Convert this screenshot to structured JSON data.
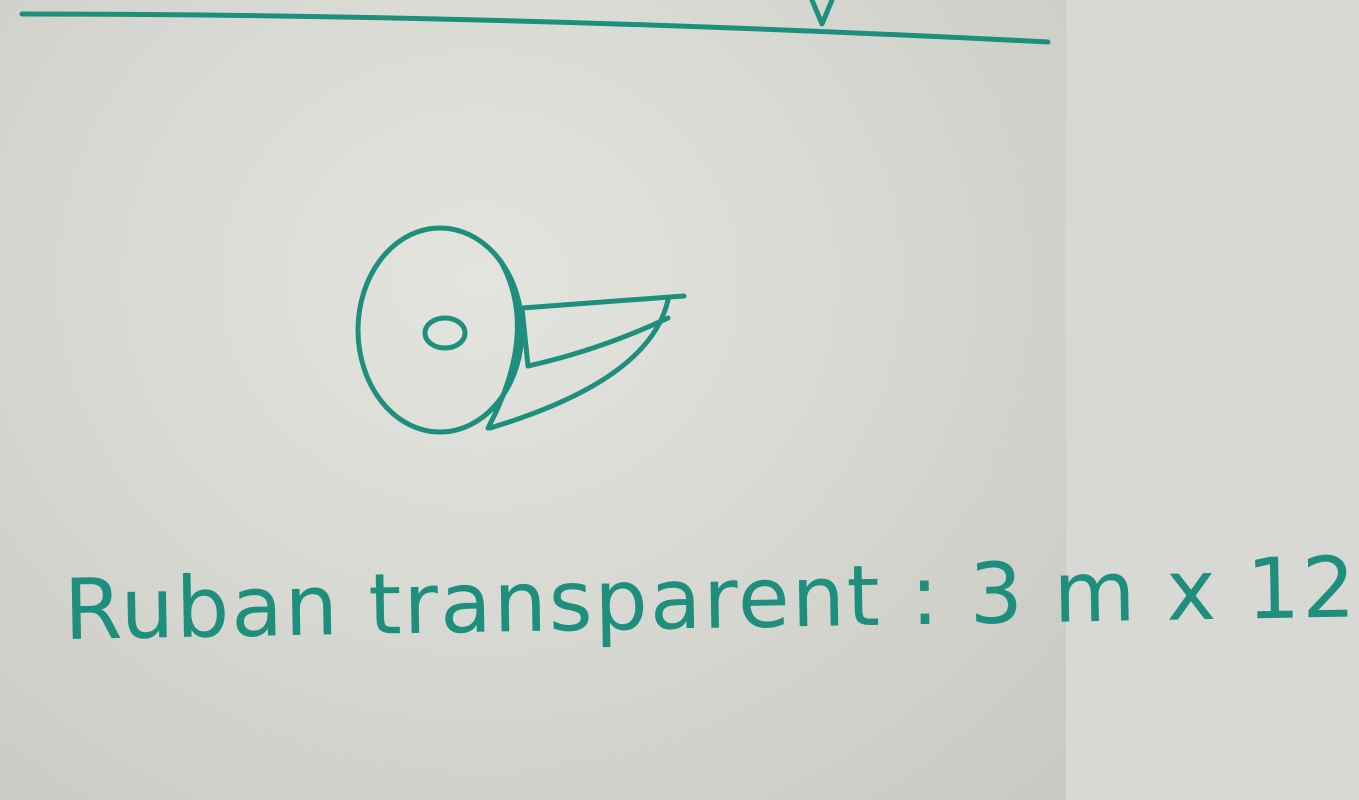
{
  "whiteboard": {
    "caption": "Ruban transparent : 3 m x 12",
    "marker_color": "#1f8f7d",
    "board_color": "#dcdcd7"
  }
}
